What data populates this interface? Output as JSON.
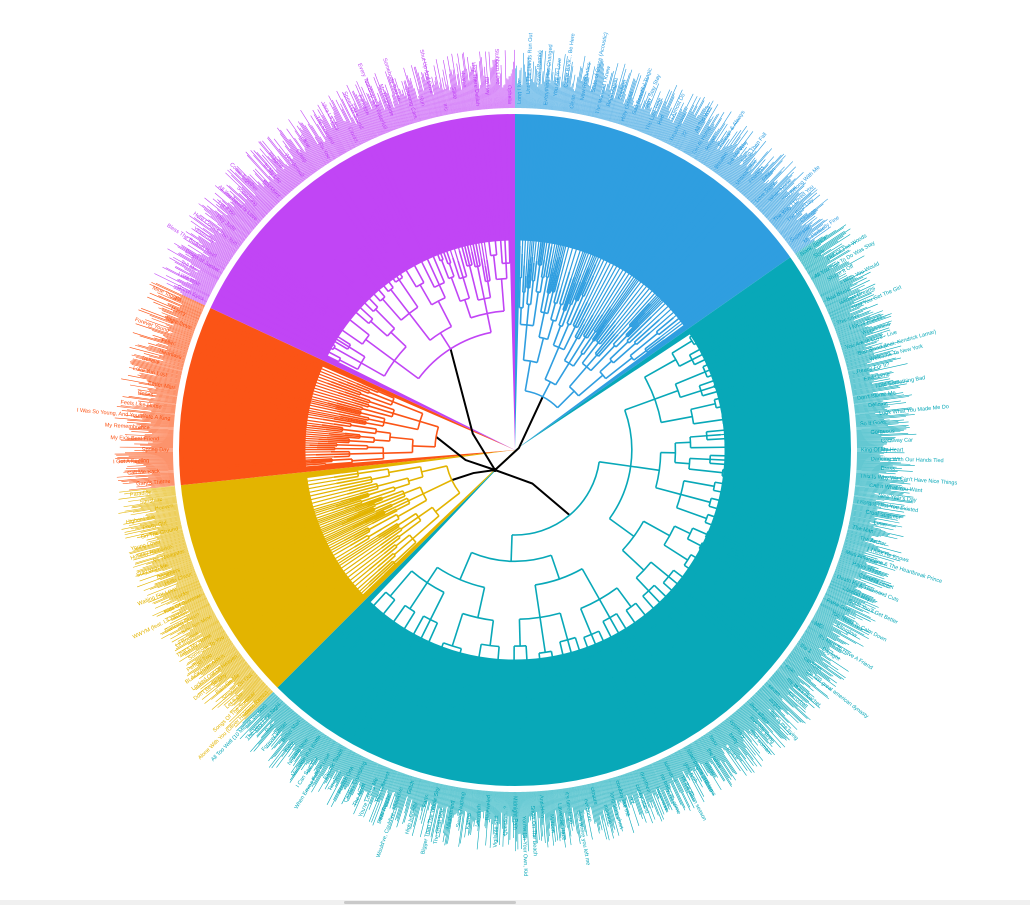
{
  "diagram": {
    "type": "circular-dendrogram",
    "clusters": [
      {
        "id": "blue",
        "color": "#2f9ee0",
        "labels": [
          "Long Live",
          "Until The Hands Run Out",
          "Lover (Remix)",
          "Everything Has Changed",
          "You Are In Love",
          "Come Back... Be Here",
          "Clean",
          "New Romantics",
          "State of Grace (Acoustic)",
          "The Moment I Knew",
          "Begin Again",
          "Starlight",
          "Holy Ground",
          "Sad Beautiful Tragic",
          "Stay Stay Stay",
          "The Last Time",
          "Red",
          "I Almost Do",
          "Treacherous",
          "22",
          "All Too Well",
          "Girl At Home",
          "Ronan",
          "Forever & Always",
          "Breathe",
          "Tell Me Why",
          "Jump Then Fall",
          "Untouchable",
          "Fearless",
          "Fifteen",
          "Love Story",
          "White Horse",
          "You Belong With Me",
          "The Way I Loved You",
          "The Best Day",
          "Change",
          "Superstar",
          "Mr. Perfectly Fine"
        ]
      },
      {
        "id": "teal",
        "color": "#08a8b8",
        "labels": [
          "Blank Space",
          "Style",
          "Out Of The Woods",
          "All You Had To Do Was Stay",
          "Shake It Off",
          "I Wish You Would",
          "Bad Blood",
          "Wildest Dreams",
          "How You Get The Girl",
          "This Love",
          "I Know Places",
          "Wonderland",
          "You Are In Love - Live",
          "Bad Blood (feat. Kendrick Lamar)",
          "Welcome To New York",
          "...Ready For It?",
          "End Game",
          "I Did Something Bad",
          "Don't Blame Me",
          "Delicate",
          "Look What You Made Me Do",
          "So It Goes...",
          "Gorgeous",
          "Getaway Car",
          "King Of My Heart",
          "Dancing With Our Hands Tied",
          "Dress",
          "This Is Why We Can't Have Nice Things",
          "Call It What You Want",
          "New Year's Day",
          "I Forgot That You Existed",
          "Cruel Summer",
          "Lover",
          "The Man",
          "The Archer",
          "I Think He Knows",
          "Miss Americana & The Heartbreak Prince",
          "Paper Rings",
          "Cornelia Street",
          "Death By A Thousand Cuts",
          "London Boy",
          "Soon You'll Get Better",
          "False God",
          "You Need To Calm Down",
          "Afterglow",
          "ME!",
          "It's Nice To Have A Friend",
          "Daylight",
          "the 1",
          "cardigan",
          "the last great american dynasty",
          "exile",
          "my tears ricochet",
          "mirrorball",
          "seven",
          "august",
          "this is me trying",
          "illicit affairs",
          "invisible string",
          "mad woman",
          "epiphany",
          "betty",
          "peace",
          "hoax",
          "the lakes",
          "willow",
          "champagne problems",
          "gold rush",
          "'tis the damn season",
          "tolerate it",
          "no body, no crime",
          "happiness",
          "dorothea",
          "coney island",
          "ivy",
          "cowboy like me",
          "long story short",
          "marjorie",
          "closure",
          "evermore",
          "right where you left me",
          "it's time to go",
          "Lavender Haze",
          "Maroon",
          "Anti-Hero",
          "Snow On The Beach",
          "You're On Your Own, Kid",
          "Midnight Rain",
          "Question...?",
          "Vigilante Shit",
          "Bejeweled",
          "Labyrinth",
          "Karma",
          "Sweet Nothing",
          "Mastermind",
          "The Great War",
          "Bigger Than The Whole Sky",
          "Paris",
          "High Infidelity",
          "Glitch",
          "Would've, Could've, Should've",
          "Dear Reader",
          "Hits Different",
          "You're Losing Me",
          "The Alcott",
          "Castles Crumbling",
          "Foolish One",
          "Timeless",
          "Electric Touch",
          "When Emma Falls in Love",
          "I Can See You",
          "Message In A Bottle",
          "Nothing New",
          "Babe",
          "Better Man",
          "Forever Winter",
          "Run",
          "The Very First Night",
          "All Too Well (10 Minute Version)"
        ]
      },
      {
        "id": "yellow",
        "color": "#e3b400",
        "labels": [
          "Alone With You (Oliver Heldens Remix)",
          "Songs Of The Summer",
          "Let It Go",
          "Smooth On Out",
          "Rain On Me",
          "Don't Be So Shy",
          "Locked Out Of Heaven",
          "BLACKPINK AREA",
          "Perfect Two",
          "Someone To You",
          "That's My Home",
          "Lil Bounce",
          "Sins Are Mine",
          "Dancing Queen",
          "WWYM (feat. Lil Yachty)",
          "Kids Of Summer",
          "Lucky",
          "Waiting For Love",
          "Hello Cheer",
          "Dreamers",
          "Stay With Me",
          "Mr. Navigator",
          "Holiday Romance",
          "Young Lover",
          "On The Ground",
          "Pretty Girl",
          "Higher Love",
          "Heaven",
          "Sunshine",
          "Paradise"
        ]
      },
      {
        "id": "orange",
        "color": "#fb5416",
        "labels": [
          "Gary's Theme",
          "Call Me Back",
          "I Got A Feeling",
          "Spring Day",
          "My Ex's Best Friend",
          "My Remembrance",
          "I Was So Young, And You Were A King",
          "Feels Like Home",
          "Roses",
          "Better Man",
          "Love You Lost",
          "Believe",
          "Heartless",
          "Fallin'",
          "Forever Young",
          "Night Drive",
          "Honey",
          "Mine Tonight"
        ]
      },
      {
        "id": "purple",
        "color": "#c145f5",
        "labels": [
          "Green Eyes",
          "I Will Wait",
          "Tell Me",
          "Drops of Jupiter",
          "Bless The Broken Road",
          "Yesterday",
          "Here Comes The Sun",
          "Hey Jude",
          "Let It Be",
          "All You Need Is Love",
          "Something",
          "Come Together",
          "Blackbird",
          "In My Life",
          "Imagine",
          "Wonderwall",
          "Creep",
          "Yellow",
          "Fix You",
          "The Scientist",
          "Viva La Vida",
          "Clocks",
          "Speed Of Sound",
          "Paradise",
          "Every Teardrop Is A Waterfall",
          "Mr. Brightside",
          "Somebody Told Me",
          "Chasing Cars",
          "Run",
          "Shut Up And Drive",
          "Iris",
          "Slide",
          "Name",
          "Hey There Delilah",
          "Ho Hey",
          "Stubborn Love",
          "Ophelia"
        ]
      }
    ]
  }
}
